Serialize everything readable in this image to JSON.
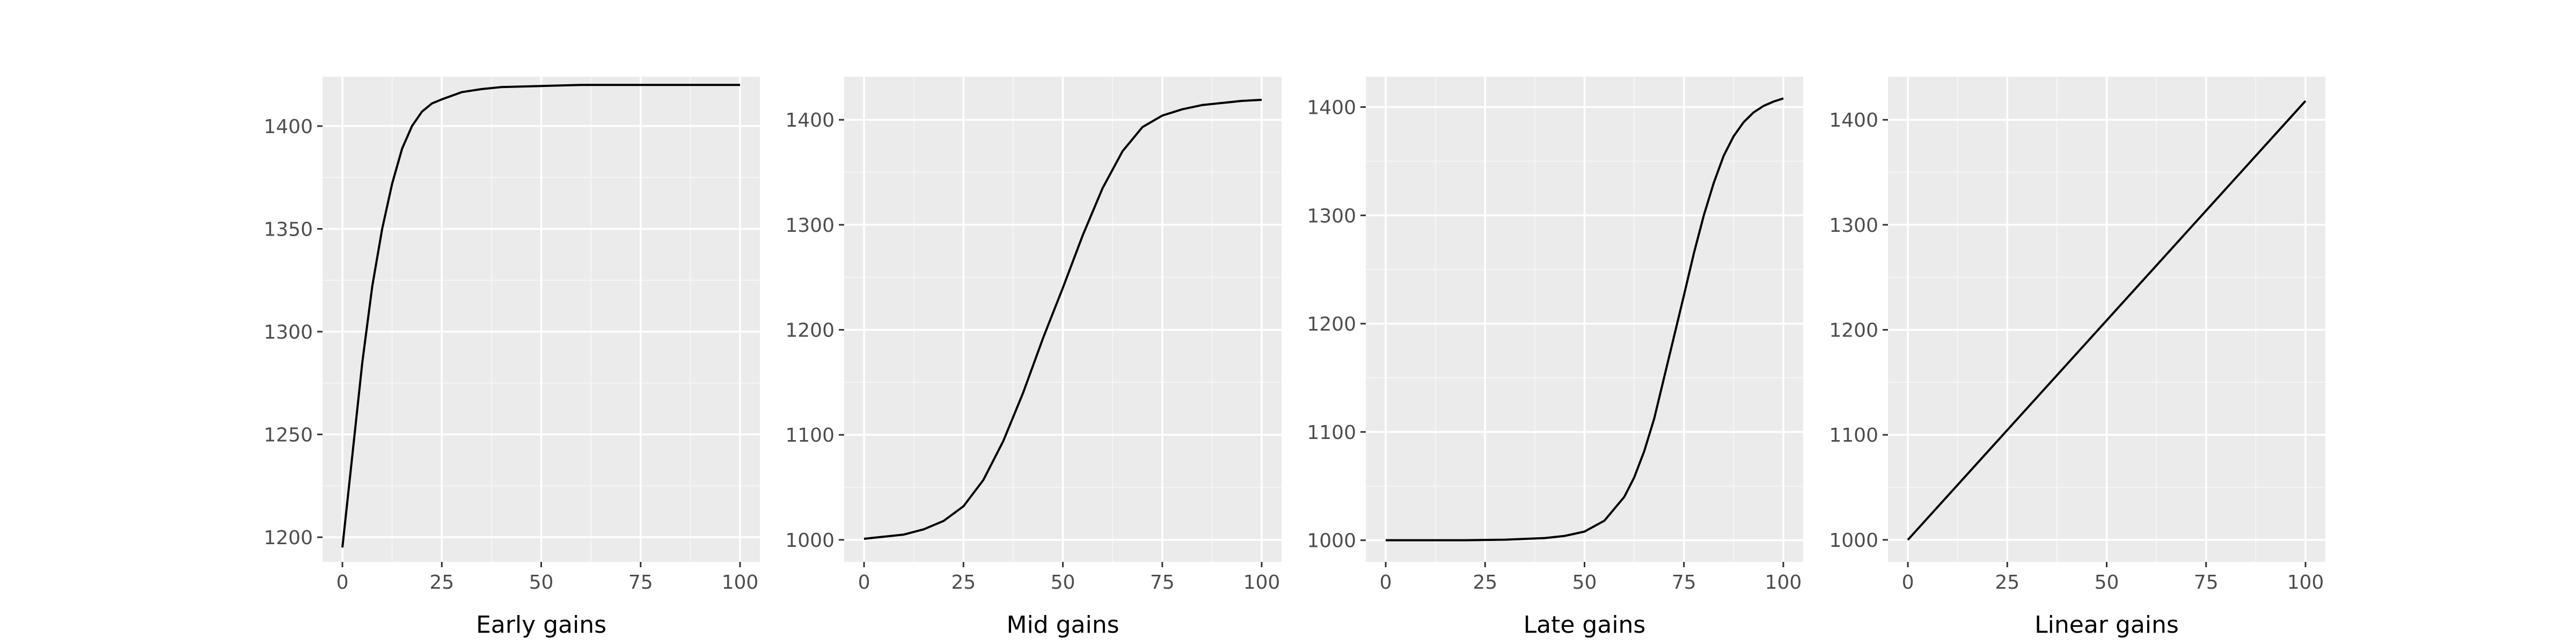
{
  "colors": {
    "panel_bg": "#ebebeb",
    "grid_major": "#ffffff",
    "grid_minor": "#f5f5f5",
    "line": "#000000",
    "tick_text": "#4d4d4d",
    "axis_title": "#000000"
  },
  "chart_data": [
    {
      "type": "line",
      "xlabel": "Early gains",
      "ylabel": "",
      "title": "",
      "xlim": [
        -5,
        105
      ],
      "ylim": [
        1188,
        1424
      ],
      "xticks": [
        0,
        25,
        50,
        75,
        100
      ],
      "xtick_labels": [
        "0",
        "25",
        "50",
        "75",
        "100"
      ],
      "yticks": [
        1200,
        1250,
        1300,
        1350,
        1400
      ],
      "ytick_labels": [
        "1200",
        "1250",
        "1300",
        "1350",
        "1400"
      ],
      "grid": true,
      "series": [
        {
          "x": [
            0,
            2.5,
            5,
            7.5,
            10,
            12.5,
            15,
            17.5,
            20,
            22.5,
            25,
            30,
            35,
            40,
            50,
            60,
            70,
            80,
            90,
            100
          ],
          "y": [
            1195,
            1240,
            1285,
            1322,
            1350,
            1372,
            1389,
            1400,
            1407,
            1411,
            1413,
            1416.5,
            1418,
            1419,
            1419.5,
            1420,
            1420,
            1420,
            1420,
            1420
          ]
        }
      ]
    },
    {
      "type": "line",
      "xlabel": "Mid gains",
      "ylabel": "",
      "title": "",
      "xlim": [
        -5,
        105
      ],
      "ylim": [
        979,
        1441
      ],
      "xticks": [
        0,
        25,
        50,
        75,
        100
      ],
      "xtick_labels": [
        "0",
        "25",
        "50",
        "75",
        "100"
      ],
      "yticks": [
        1000,
        1100,
        1200,
        1300,
        1400
      ],
      "ytick_labels": [
        "1000",
        "1100",
        "1200",
        "1300",
        "1400"
      ],
      "grid": true,
      "series": [
        {
          "x": [
            0,
            5,
            10,
            15,
            20,
            25,
            30,
            35,
            40,
            45,
            50,
            55,
            60,
            65,
            70,
            75,
            80,
            85,
            90,
            95,
            100
          ],
          "y": [
            1001,
            1003,
            1005,
            1010,
            1018,
            1032,
            1057,
            1094,
            1140,
            1192,
            1240,
            1290,
            1335,
            1370,
            1393,
            1404,
            1410,
            1414,
            1416,
            1418,
            1419
          ]
        }
      ]
    },
    {
      "type": "line",
      "xlabel": "Late gains",
      "ylabel": "",
      "title": "",
      "xlim": [
        -5,
        105
      ],
      "ylim": [
        980,
        1428
      ],
      "xticks": [
        0,
        25,
        50,
        75,
        100
      ],
      "xtick_labels": [
        "0",
        "25",
        "50",
        "75",
        "100"
      ],
      "yticks": [
        1000,
        1100,
        1200,
        1300,
        1400
      ],
      "ytick_labels": [
        "1000",
        "1100",
        "1200",
        "1300",
        "1400"
      ],
      "grid": true,
      "series": [
        {
          "x": [
            0,
            10,
            20,
            30,
            40,
            45,
            50,
            55,
            60,
            62.5,
            65,
            67.5,
            70,
            72.5,
            75,
            77.5,
            80,
            82.5,
            85,
            87.5,
            90,
            92.5,
            95,
            97.5,
            100
          ],
          "y": [
            1000,
            1000,
            1000,
            1000.5,
            1002,
            1004,
            1008,
            1018,
            1040,
            1058,
            1082,
            1112,
            1150,
            1188,
            1226,
            1265,
            1300,
            1330,
            1355,
            1373,
            1386,
            1395,
            1401,
            1405,
            1408
          ]
        }
      ]
    },
    {
      "type": "line",
      "xlabel": "Linear gains",
      "ylabel": "",
      "title": "",
      "xlim": [
        -5,
        105
      ],
      "ylim": [
        979,
        1441
      ],
      "xticks": [
        0,
        25,
        50,
        75,
        100
      ],
      "xtick_labels": [
        "0",
        "25",
        "50",
        "75",
        "100"
      ],
      "yticks": [
        1000,
        1100,
        1200,
        1300,
        1400
      ],
      "ytick_labels": [
        "1000",
        "1100",
        "1200",
        "1300",
        "1400"
      ],
      "grid": true,
      "series": [
        {
          "x": [
            0,
            100
          ],
          "y": [
            1000,
            1418
          ]
        }
      ]
    }
  ]
}
